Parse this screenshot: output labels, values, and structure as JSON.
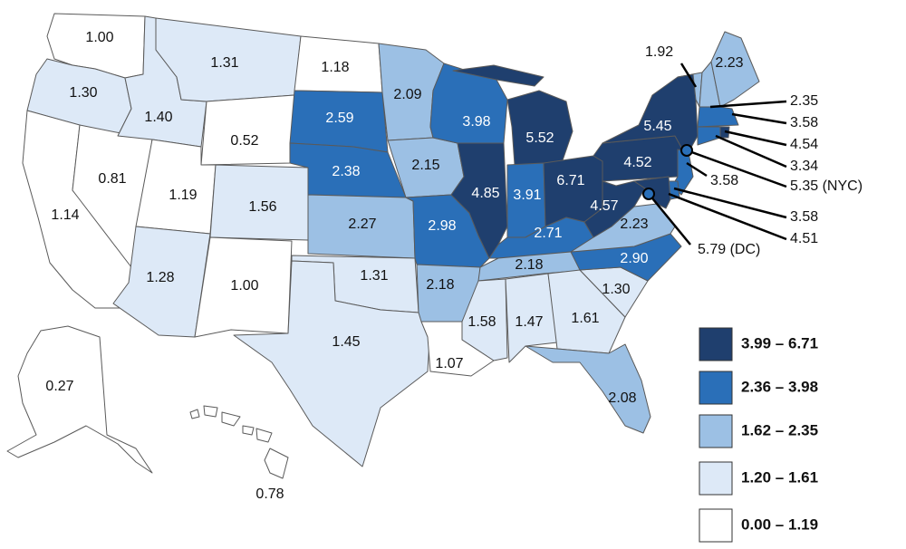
{
  "colors": {
    "c5": "#1f3f6e",
    "c4": "#2a6fb8",
    "c3": "#9cc0e4",
    "c2": "#dde9f7",
    "c1": "#ffffff"
  },
  "legend": [
    {
      "range": "3.99 – 6.71",
      "class": "c5"
    },
    {
      "range": "2.36 – 3.98",
      "class": "c4"
    },
    {
      "range": "1.62 – 2.35",
      "class": "c3"
    },
    {
      "range": "1.20 – 1.61",
      "class": "c2"
    },
    {
      "range": "0.00 – 1.19",
      "class": "c1"
    }
  ],
  "states": {
    "WA": {
      "value": "1.00",
      "class": "c1"
    },
    "OR": {
      "value": "1.30",
      "class": "c2"
    },
    "CA": {
      "value": "1.14",
      "class": "c1"
    },
    "NV": {
      "value": "0.81",
      "class": "c1"
    },
    "ID": {
      "value": "1.40",
      "class": "c2"
    },
    "MT": {
      "value": "1.31",
      "class": "c2"
    },
    "WY": {
      "value": "0.52",
      "class": "c1"
    },
    "UT": {
      "value": "1.19",
      "class": "c1"
    },
    "AZ": {
      "value": "1.28",
      "class": "c2"
    },
    "CO": {
      "value": "1.56",
      "class": "c2"
    },
    "NM": {
      "value": "1.00",
      "class": "c1"
    },
    "ND": {
      "value": "1.18",
      "class": "c1"
    },
    "SD": {
      "value": "2.59",
      "class": "c4"
    },
    "NE": {
      "value": "2.38",
      "class": "c4"
    },
    "KS": {
      "value": "2.27",
      "class": "c3"
    },
    "OK": {
      "value": "1.31",
      "class": "c2"
    },
    "TX": {
      "value": "1.45",
      "class": "c2"
    },
    "MN": {
      "value": "2.09",
      "class": "c3"
    },
    "IA": {
      "value": "2.15",
      "class": "c3"
    },
    "MO": {
      "value": "2.98",
      "class": "c4"
    },
    "AR": {
      "value": "2.18",
      "class": "c3"
    },
    "LA": {
      "value": "1.07",
      "class": "c1"
    },
    "WI": {
      "value": "3.98",
      "class": "c4"
    },
    "IL": {
      "value": "4.85",
      "class": "c5"
    },
    "MI": {
      "value": "5.52",
      "class": "c5"
    },
    "IN": {
      "value": "3.91",
      "class": "c4"
    },
    "OH": {
      "value": "6.71",
      "class": "c5"
    },
    "KY": {
      "value": "2.71",
      "class": "c4"
    },
    "TN": {
      "value": "2.18",
      "class": "c3"
    },
    "MS": {
      "value": "1.58",
      "class": "c2"
    },
    "AL": {
      "value": "1.47",
      "class": "c2"
    },
    "GA": {
      "value": "1.61",
      "class": "c2"
    },
    "FL": {
      "value": "2.08",
      "class": "c3"
    },
    "SC": {
      "value": "1.30",
      "class": "c2"
    },
    "NC": {
      "value": "2.90",
      "class": "c4"
    },
    "VA": {
      "value": "2.23",
      "class": "c3"
    },
    "WV": {
      "value": "4.57",
      "class": "c5"
    },
    "PA": {
      "value": "4.52",
      "class": "c5"
    },
    "NY": {
      "value": "5.45",
      "class": "c5"
    },
    "VT": {
      "value": "1.92",
      "class": "c3"
    },
    "NH": {
      "value": "2.35",
      "class": "c3"
    },
    "ME": {
      "value": "2.23",
      "class": "c3"
    },
    "MA": {
      "value": "3.58",
      "class": "c4"
    },
    "RI": {
      "value": "4.54",
      "class": "c5"
    },
    "CT": {
      "value": "3.34",
      "class": "c4"
    },
    "NJ": {
      "value": "3.58",
      "class": "c4"
    },
    "DE": {
      "value": "3.58",
      "class": "c4"
    },
    "MD": {
      "value": "4.51",
      "class": "c5"
    },
    "AK": {
      "value": "0.27",
      "class": "c1"
    },
    "HI": {
      "value": "0.78",
      "class": "c1"
    }
  },
  "callouts": {
    "nyc": "5.35 (NYC)",
    "dc": "5.79 (DC)"
  }
}
